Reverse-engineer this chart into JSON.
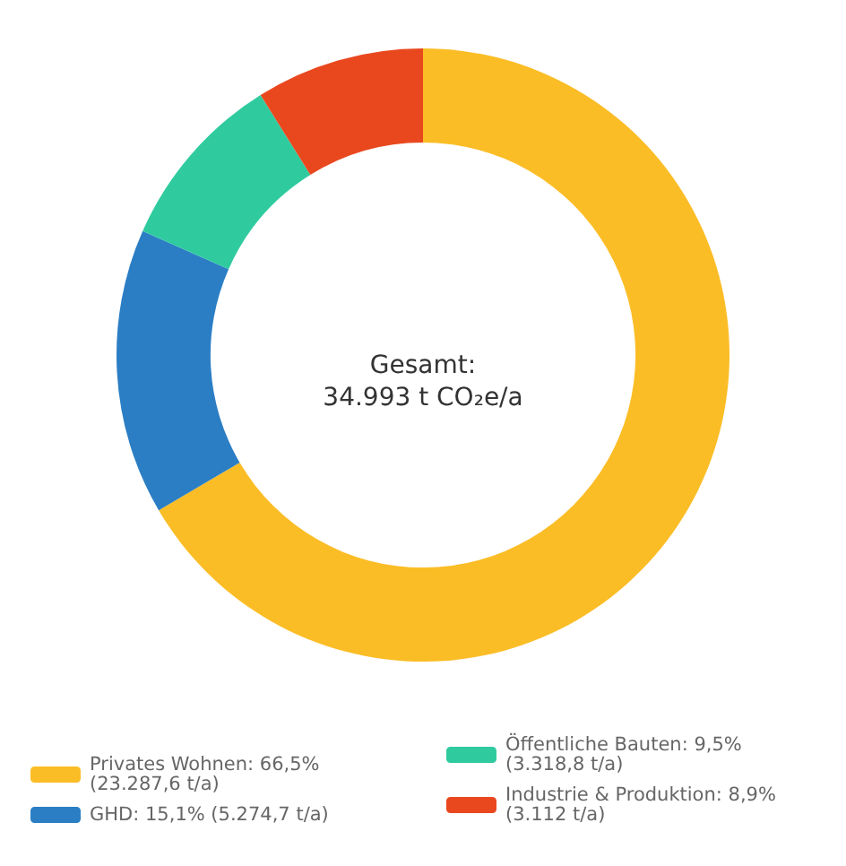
{
  "chart_data": {
    "type": "donut",
    "title": "Gesamt:\n34.993 t CO₂e/a",
    "categories": [
      "Privates Wohnen: 66,5% (23.287,6 t/a)",
      "GHD: 15,1% (5.274,7 t/a)",
      "Öffentliche Bauten: 9,5% (3.318,8 t/a)",
      "Industrie & Produktion: 8,9% (3.112 t/a)"
    ],
    "values": [
      23287.6,
      5274.7,
      3318.8,
      3112
    ],
    "colors": [
      "#fbbd26",
      "#2b7ec4",
      "#2fcb9f",
      "#e9481f"
    ],
    "legend": "bottom"
  }
}
